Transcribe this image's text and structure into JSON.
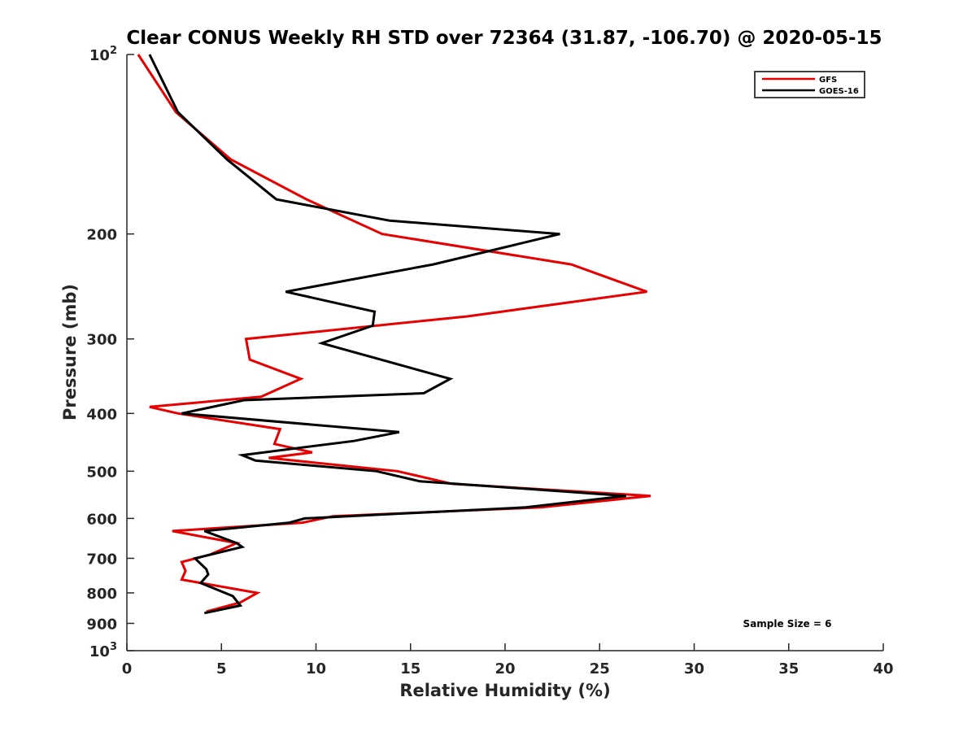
{
  "chart_data": {
    "type": "line",
    "title": "Clear CONUS Weekly RH STD over 72364 (31.87, -106.70) @ 2020-05-15",
    "xlabel": "Relative Humidity (%)",
    "ylabel": "Pressure (mb)",
    "xlim": [
      0,
      40
    ],
    "ylim": [
      100,
      1000
    ],
    "yscale": "log",
    "y_reversed": true,
    "grid": false,
    "legend_position": "top-right",
    "annotation": "Sample Size = 6",
    "x_ticks": [
      {
        "value": 0,
        "label": "0"
      },
      {
        "value": 5,
        "label": "5"
      },
      {
        "value": 10,
        "label": "10"
      },
      {
        "value": 15,
        "label": "15"
      },
      {
        "value": 20,
        "label": "20"
      },
      {
        "value": 25,
        "label": "25"
      },
      {
        "value": 30,
        "label": "30"
      },
      {
        "value": 35,
        "label": "35"
      },
      {
        "value": 40,
        "label": "40"
      }
    ],
    "y_ticks": [
      {
        "value": 100,
        "label": "10",
        "sup": "2"
      },
      {
        "value": 200,
        "label": "200"
      },
      {
        "value": 300,
        "label": "300"
      },
      {
        "value": 400,
        "label": "400"
      },
      {
        "value": 500,
        "label": "500"
      },
      {
        "value": 600,
        "label": "600"
      },
      {
        "value": 700,
        "label": "700"
      },
      {
        "value": 800,
        "label": "800"
      },
      {
        "value": 900,
        "label": "900"
      },
      {
        "value": 1000,
        "label": "10",
        "sup": "3"
      }
    ],
    "series": [
      {
        "name": "GFS",
        "color": "#e60000",
        "points": [
          [
            0.6,
            100
          ],
          [
            2.6,
            125
          ],
          [
            5.5,
            150
          ],
          [
            9.5,
            175
          ],
          [
            13.5,
            200
          ],
          [
            23.5,
            225
          ],
          [
            27.5,
            250
          ],
          [
            18.0,
            275
          ],
          [
            6.3,
            300
          ],
          [
            6.5,
            325
          ],
          [
            9.2,
            350
          ],
          [
            7.1,
            375
          ],
          [
            1.2,
            390
          ],
          [
            2.7,
            400
          ],
          [
            8.1,
            425
          ],
          [
            7.8,
            450
          ],
          [
            9.8,
            465
          ],
          [
            7.5,
            475
          ],
          [
            14.3,
            500
          ],
          [
            17.2,
            525
          ],
          [
            27.7,
            550
          ],
          [
            21.9,
            575
          ],
          [
            10.9,
            595
          ],
          [
            9.3,
            610
          ],
          [
            2.4,
            630
          ],
          [
            5.8,
            660
          ],
          [
            4.4,
            690
          ],
          [
            2.9,
            710
          ],
          [
            3.1,
            735
          ],
          [
            2.9,
            760
          ],
          [
            6.9,
            800
          ],
          [
            6.0,
            830
          ],
          [
            4.2,
            860
          ]
        ]
      },
      {
        "name": "GOES-16",
        "color": "#000000",
        "points": [
          [
            1.2,
            100
          ],
          [
            2.7,
            125
          ],
          [
            5.3,
            150
          ],
          [
            7.9,
            175
          ],
          [
            13.9,
            190
          ],
          [
            22.9,
            200
          ],
          [
            16.2,
            225
          ],
          [
            8.4,
            250
          ],
          [
            13.1,
            270
          ],
          [
            13.0,
            285
          ],
          [
            10.3,
            305
          ],
          [
            17.1,
            350
          ],
          [
            15.7,
            370
          ],
          [
            6.2,
            380
          ],
          [
            2.9,
            400
          ],
          [
            14.4,
            430
          ],
          [
            12.0,
            445
          ],
          [
            6.1,
            470
          ],
          [
            6.8,
            480
          ],
          [
            13.2,
            500
          ],
          [
            15.5,
            520
          ],
          [
            26.4,
            550
          ],
          [
            21.1,
            575
          ],
          [
            9.4,
            600
          ],
          [
            8.6,
            610
          ],
          [
            4.1,
            630
          ],
          [
            5.8,
            660
          ],
          [
            6.1,
            670
          ],
          [
            3.6,
            700
          ],
          [
            4.2,
            730
          ],
          [
            4.3,
            745
          ],
          [
            3.9,
            770
          ],
          [
            5.6,
            810
          ],
          [
            6.0,
            840
          ],
          [
            4.1,
            865
          ]
        ]
      }
    ]
  }
}
